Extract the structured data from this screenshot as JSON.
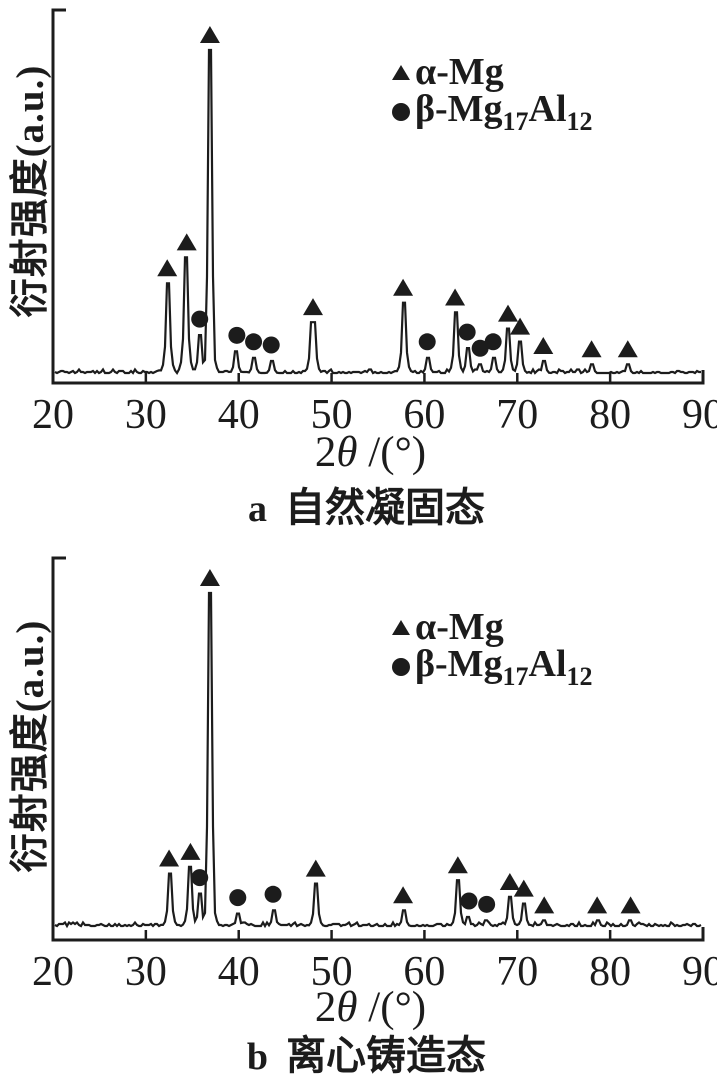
{
  "page": {
    "background": "#ffffff",
    "ink": "#1c1c1c"
  },
  "chart_data": [
    {
      "type": "line",
      "name": "xrd-pattern-a",
      "caption": {
        "letter": "a",
        "text": "自然凝固态"
      },
      "ylabel": "衍射强度(a.u.)",
      "xlabel": {
        "prefix": "2",
        "theta": "θ",
        "suffix": " /(°)"
      },
      "x_range": [
        20,
        90
      ],
      "x_ticks": [
        20,
        30,
        40,
        50,
        60,
        70,
        80,
        90
      ],
      "ylim": [
        0,
        110
      ],
      "y_unit": "a.u.",
      "grid": false,
      "legend_position": "upper-right-inside",
      "legend": {
        "alpha": {
          "marker": "triangle",
          "label": "α-Mg"
        },
        "beta": {
          "marker": "circle",
          "base1": "β-Mg",
          "sub1": "17",
          "base2": "Al",
          "sub2": "12"
        }
      },
      "peaks": [
        {
          "two_theta": 32.3,
          "intensity": 28,
          "phase": "alpha"
        },
        {
          "two_theta": 34.4,
          "intensity": 36,
          "phase": "alpha"
        },
        {
          "two_theta": 35.8,
          "intensity": 12,
          "phase": "beta"
        },
        {
          "two_theta": 36.9,
          "intensity": 100,
          "phase": "alpha"
        },
        {
          "two_theta": 39.8,
          "intensity": 7,
          "phase": "beta"
        },
        {
          "two_theta": 41.6,
          "intensity": 5,
          "phase": "beta"
        },
        {
          "two_theta": 43.5,
          "intensity": 4,
          "phase": "beta"
        },
        {
          "two_theta": 48.0,
          "intensity": 16,
          "phase": "alpha"
        },
        {
          "two_theta": 57.7,
          "intensity": 22,
          "phase": "alpha"
        },
        {
          "two_theta": 60.3,
          "intensity": 5,
          "phase": "beta"
        },
        {
          "two_theta": 63.3,
          "intensity": 19,
          "phase": "alpha"
        },
        {
          "two_theta": 64.6,
          "intensity": 8,
          "phase": "beta"
        },
        {
          "two_theta": 66.0,
          "intensity": 3,
          "phase": "beta"
        },
        {
          "two_theta": 67.4,
          "intensity": 5,
          "phase": "beta"
        },
        {
          "two_theta": 69.0,
          "intensity": 14,
          "phase": "alpha"
        },
        {
          "two_theta": 70.3,
          "intensity": 10,
          "phase": "alpha"
        },
        {
          "two_theta": 72.8,
          "intensity": 4,
          "phase": "alpha"
        },
        {
          "two_theta": 78.0,
          "intensity": 3,
          "phase": "alpha"
        },
        {
          "two_theta": 81.9,
          "intensity": 3,
          "phase": "alpha"
        }
      ]
    },
    {
      "type": "line",
      "name": "xrd-pattern-b",
      "caption": {
        "letter": "b",
        "text": "离心铸造态"
      },
      "ylabel": "衍射强度(a.u.)",
      "xlabel": {
        "prefix": "2",
        "theta": "θ",
        "suffix": " /(°)"
      },
      "x_range": [
        20,
        90
      ],
      "x_ticks": [
        20,
        30,
        40,
        50,
        60,
        70,
        80,
        90
      ],
      "ylim": [
        0,
        110
      ],
      "y_unit": "a.u.",
      "grid": false,
      "legend_position": "upper-right-inside",
      "legend": {
        "alpha": {
          "marker": "triangle",
          "label": "α-Mg"
        },
        "beta": {
          "marker": "circle",
          "base1": "β-Mg",
          "sub1": "17",
          "base2": "Al",
          "sub2": "12"
        }
      },
      "peaks": [
        {
          "two_theta": 32.5,
          "intensity": 16,
          "phase": "alpha"
        },
        {
          "two_theta": 34.8,
          "intensity": 18,
          "phase": "alpha"
        },
        {
          "two_theta": 35.8,
          "intensity": 10,
          "phase": "beta"
        },
        {
          "two_theta": 36.9,
          "intensity": 100,
          "phase": "alpha"
        },
        {
          "two_theta": 39.9,
          "intensity": 4,
          "phase": "beta"
        },
        {
          "two_theta": 43.7,
          "intensity": 5,
          "phase": "beta"
        },
        {
          "two_theta": 48.3,
          "intensity": 13,
          "phase": "alpha"
        },
        {
          "two_theta": 57.7,
          "intensity": 5,
          "phase": "alpha"
        },
        {
          "two_theta": 63.6,
          "intensity": 14,
          "phase": "alpha"
        },
        {
          "two_theta": 64.8,
          "intensity": 3,
          "phase": "beta"
        },
        {
          "two_theta": 66.7,
          "intensity": 2,
          "phase": "beta"
        },
        {
          "two_theta": 69.2,
          "intensity": 9,
          "phase": "alpha"
        },
        {
          "two_theta": 70.7,
          "intensity": 7,
          "phase": "alpha"
        },
        {
          "two_theta": 72.9,
          "intensity": 2,
          "phase": "alpha"
        },
        {
          "two_theta": 78.6,
          "intensity": 2,
          "phase": "alpha"
        },
        {
          "two_theta": 82.2,
          "intensity": 2,
          "phase": "alpha"
        }
      ]
    }
  ]
}
